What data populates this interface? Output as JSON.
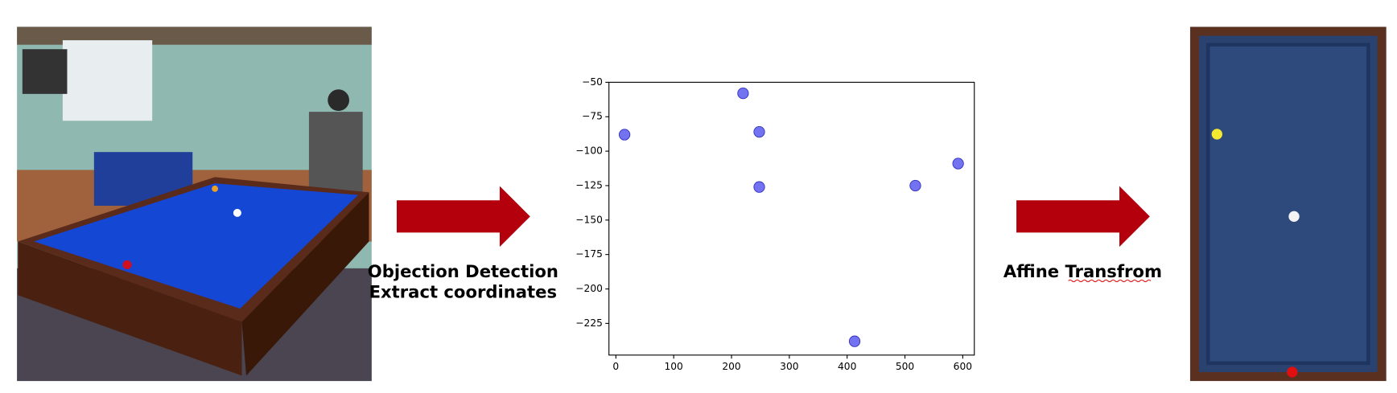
{
  "labels": {
    "step1": [
      "Objection Detection",
      "Extract coordinates"
    ],
    "step2": "Affine Transfrom"
  },
  "chart_data": {
    "type": "scatter",
    "color": "#5a5af0",
    "x": [
      15,
      220,
      248,
      248,
      518,
      592,
      413
    ],
    "values": [
      -88,
      -58,
      -86,
      -126,
      -125,
      -109,
      -238
    ],
    "xlim": [
      -12,
      620
    ],
    "ylim": [
      -248,
      -50
    ],
    "xticks": [
      0,
      100,
      200,
      300,
      400,
      500,
      600
    ],
    "yticks": [
      {
        "value": -50,
        "label": "−50"
      },
      {
        "value": -75,
        "label": "−75"
      },
      {
        "value": -100,
        "label": "−100"
      },
      {
        "value": -125,
        "label": "−125"
      },
      {
        "value": -150,
        "label": "−150"
      },
      {
        "value": -175,
        "label": "−175"
      },
      {
        "value": -200,
        "label": "−200"
      },
      {
        "value": -225,
        "label": "−225"
      }
    ],
    "grid": false
  }
}
